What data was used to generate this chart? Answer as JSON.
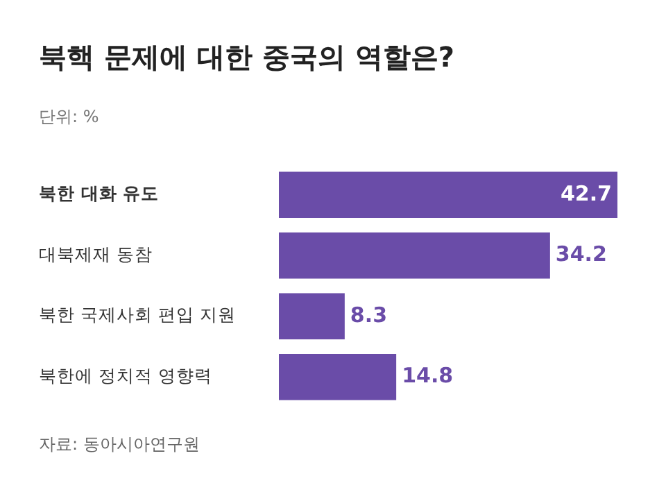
{
  "chart_data": {
    "type": "bar",
    "orientation": "horizontal",
    "title": "북핵 문제에 대한 중국의 역할은?",
    "subtitle": "단위: %",
    "categories": [
      "북한 대화 유도",
      "대북제재 동참",
      "북한 국제사회 편입 지원",
      "북한에 정치적 영향력"
    ],
    "values": [
      42.7,
      34.2,
      8.3,
      14.8
    ],
    "color": "#6a4ca8",
    "data_labels": true,
    "legend": false,
    "annotations": [
      "자료: 동아시아연구원"
    ]
  }
}
